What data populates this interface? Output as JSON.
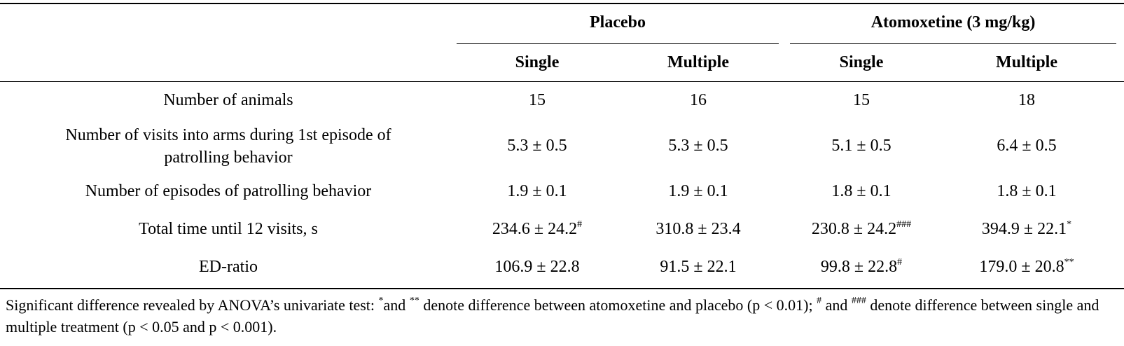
{
  "header": {
    "group_placebo": "Placebo",
    "group_atomoxetine": "Atomoxetine (3 mg/kg)",
    "sub_single_1": "Single",
    "sub_multiple_1": "Multiple",
    "sub_single_2": "Single",
    "sub_multiple_2": "Multiple"
  },
  "rows": [
    {
      "label": "Number of animals",
      "cells": [
        {
          "value": "15",
          "mark": ""
        },
        {
          "value": "16",
          "mark": ""
        },
        {
          "value": "15",
          "mark": ""
        },
        {
          "value": "18",
          "mark": ""
        }
      ]
    },
    {
      "label": "Number of visits into arms during 1st episode of patrolling behavior",
      "cells": [
        {
          "value": "5.3 ± 0.5",
          "mark": ""
        },
        {
          "value": "5.3 ± 0.5",
          "mark": ""
        },
        {
          "value": "5.1 ± 0.5",
          "mark": ""
        },
        {
          "value": "6.4 ± 0.5",
          "mark": ""
        }
      ]
    },
    {
      "label": "Number of episodes of patrolling behavior",
      "cells": [
        {
          "value": "1.9 ± 0.1",
          "mark": ""
        },
        {
          "value": "1.9 ± 0.1",
          "mark": ""
        },
        {
          "value": "1.8 ± 0.1",
          "mark": ""
        },
        {
          "value": "1.8 ± 0.1",
          "mark": ""
        }
      ]
    },
    {
      "label": "Total time until 12 visits, s",
      "cells": [
        {
          "value": "234.6 ± 24.2",
          "mark": "#"
        },
        {
          "value": "310.8 ± 23.4",
          "mark": ""
        },
        {
          "value": "230.8 ± 24.2",
          "mark": "###"
        },
        {
          "value": "394.9 ± 22.1",
          "mark": "*"
        }
      ]
    },
    {
      "label": "ED-ratio",
      "cells": [
        {
          "value": "106.9 ± 22.8",
          "mark": ""
        },
        {
          "value": "91.5 ± 22.1",
          "mark": ""
        },
        {
          "value": "99.8 ± 22.8",
          "mark": "#"
        },
        {
          "value": "179.0 ± 20.8",
          "mark": "**"
        }
      ]
    }
  ],
  "footnote": {
    "part1": "Significant difference revealed by ANOVA’s univariate test: ",
    "sup1": "*",
    "part2": "and ",
    "sup2": "**",
    "part3": " denote difference between atomoxetine and placebo (p < 0.01); ",
    "sup3": "#",
    "part4": " and ",
    "sup4": "###",
    "part5": " denote difference between single and multiple treatment (p < 0.05 and p < 0.001)."
  }
}
